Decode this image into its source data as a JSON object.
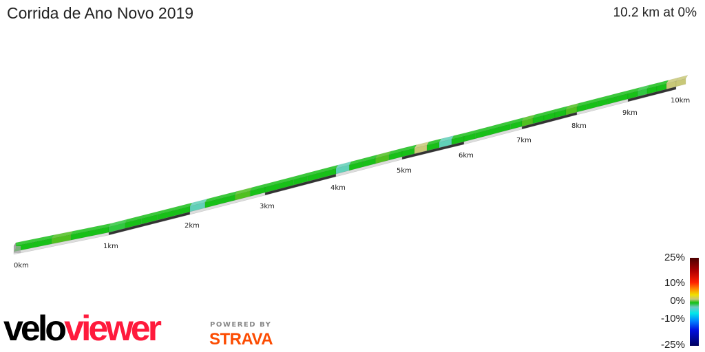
{
  "title": "Corrida de Ano Novo 2019",
  "summary": "10.2 km at 0%",
  "chart_data": {
    "type": "3d-elevation-profile",
    "total_distance_km": 10.2,
    "average_grade_pct": 0,
    "km_labels": [
      "0km",
      "1km",
      "2km",
      "3km",
      "4km",
      "5km",
      "6km",
      "7km",
      "8km",
      "9km",
      "10km"
    ],
    "segment_length_km": 0.2,
    "segment_grades_pct": [
      0,
      0,
      1,
      0,
      0,
      -1,
      0,
      0,
      0,
      0,
      -4,
      0,
      0,
      1,
      0,
      0,
      0,
      0,
      0,
      0,
      -3,
      0,
      0,
      2,
      0,
      0,
      3,
      0,
      -4,
      0,
      0,
      0,
      0,
      0,
      0,
      2,
      0,
      0,
      0,
      1,
      0,
      0,
      0,
      0,
      0,
      0,
      -2,
      0,
      0,
      3,
      4
    ],
    "legend": {
      "ticks": [
        "25%",
        "10%",
        "0%",
        "-10%",
        "-25%"
      ],
      "range_pct": [
        -25,
        25
      ]
    }
  },
  "branding": {
    "logo_velo": "velo",
    "logo_viewer": "viewer",
    "powered_by": "POWERED BY",
    "strava": "STRAVA"
  }
}
